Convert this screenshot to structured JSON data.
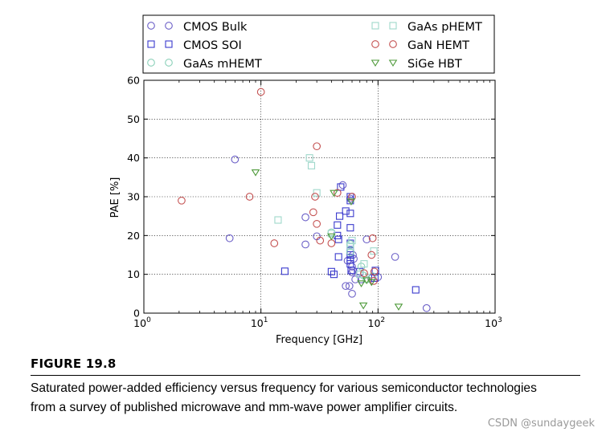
{
  "figure": {
    "label": "FIGURE 19.8",
    "caption": "Saturated power-added efficiency versus frequency for various semiconductor technologies from a survey of published microwave and mm-wave power amplifier circuits."
  },
  "watermark": "CSDN @sundaygeek",
  "chart_data": {
    "type": "scatter",
    "xscale": "log",
    "xlim": [
      1,
      1000
    ],
    "ylim": [
      0,
      60
    ],
    "xlabel": "Frequency [GHz]",
    "ylabel": "PAE [%]",
    "grid": true,
    "legend_position": "top",
    "xticks": [
      1,
      10,
      100,
      1000
    ],
    "xtick_labels": [
      {
        "base": "10",
        "exp": "0"
      },
      {
        "base": "10",
        "exp": "1"
      },
      {
        "base": "10",
        "exp": "2"
      },
      {
        "base": "10",
        "exp": "3"
      }
    ],
    "yticks": [
      0,
      10,
      20,
      30,
      40,
      50,
      60
    ],
    "ytick_labels": [
      "0",
      "10",
      "20",
      "30",
      "40",
      "50",
      "60"
    ],
    "series": [
      {
        "name": "CMOS Bulk",
        "marker": "circle",
        "color": "#6b5fc7",
        "points": [
          [
            5.4,
            19.3
          ],
          [
            6,
            39.6
          ],
          [
            24,
            24.7
          ],
          [
            24,
            17.7
          ],
          [
            30,
            19.8
          ],
          [
            50,
            33
          ],
          [
            53,
            7
          ],
          [
            55,
            13.5
          ],
          [
            57,
            7
          ],
          [
            58,
            29.5
          ],
          [
            60,
            5
          ],
          [
            60,
            10.5
          ],
          [
            60,
            12
          ],
          [
            61,
            11
          ],
          [
            61,
            15
          ],
          [
            62,
            14
          ],
          [
            64,
            8.7
          ],
          [
            72,
            8.7
          ],
          [
            80,
            19
          ],
          [
            88,
            9
          ],
          [
            100,
            9.3
          ],
          [
            140,
            14.5
          ],
          [
            260,
            1.3
          ]
        ]
      },
      {
        "name": "CMOS SOI",
        "marker": "square",
        "color": "#3a3acd",
        "points": [
          [
            16,
            10.8
          ],
          [
            40,
            10.7
          ],
          [
            42,
            10
          ],
          [
            45,
            20
          ],
          [
            45,
            22.7
          ],
          [
            46,
            14.5
          ],
          [
            46,
            19
          ],
          [
            47,
            25
          ],
          [
            48,
            32.5
          ],
          [
            53,
            26.3
          ],
          [
            58,
            30
          ],
          [
            58,
            29
          ],
          [
            58,
            25.7
          ],
          [
            58,
            22
          ],
          [
            58,
            18
          ],
          [
            58,
            16
          ],
          [
            58,
            15
          ],
          [
            58,
            13.7
          ],
          [
            58,
            12.7
          ],
          [
            59,
            11
          ],
          [
            70,
            10.7
          ],
          [
            95,
            11
          ],
          [
            94,
            9
          ],
          [
            210,
            6
          ]
        ]
      },
      {
        "name": "GaAs mHEMT",
        "marker": "circle",
        "color": "#8ad0b8",
        "points": [
          [
            40,
            20.8
          ],
          [
            58,
            17.8
          ],
          [
            58,
            15.7
          ],
          [
            72,
            12
          ],
          [
            75,
            9.7
          ],
          [
            80,
            8.7
          ],
          [
            90,
            9.5
          ]
        ]
      },
      {
        "name": "GaAs pHEMT",
        "marker": "square",
        "color": "#9fd8cb",
        "points": [
          [
            14,
            24
          ],
          [
            26,
            40
          ],
          [
            27,
            38
          ],
          [
            30,
            31
          ],
          [
            40,
            20.5
          ],
          [
            58,
            17.2
          ],
          [
            60,
            18.7
          ],
          [
            70,
            10
          ],
          [
            76,
            12.7
          ],
          [
            92,
            16
          ]
        ]
      },
      {
        "name": "GaN HEMT",
        "marker": "circle",
        "color": "#c45050",
        "points": [
          [
            2.1,
            29
          ],
          [
            8,
            30
          ],
          [
            10,
            57
          ],
          [
            13,
            18
          ],
          [
            28,
            26
          ],
          [
            29,
            30
          ],
          [
            30,
            43
          ],
          [
            30,
            23
          ],
          [
            32,
            18.7
          ],
          [
            40,
            18
          ],
          [
            45,
            31
          ],
          [
            60,
            30
          ],
          [
            76,
            10.3
          ],
          [
            88,
            15
          ],
          [
            90,
            19.3
          ],
          [
            92,
            8.3
          ],
          [
            93,
            10.7
          ]
        ]
      },
      {
        "name": "SiGe HBT",
        "marker": "triangle",
        "color": "#4e9a3a",
        "points": [
          [
            9,
            36.3
          ],
          [
            40,
            19.8
          ],
          [
            42,
            31
          ],
          [
            59,
            28.8
          ],
          [
            72,
            7.7
          ],
          [
            75,
            2
          ],
          [
            80,
            8.5
          ],
          [
            88,
            8
          ],
          [
            150,
            1.7
          ]
        ]
      }
    ]
  }
}
